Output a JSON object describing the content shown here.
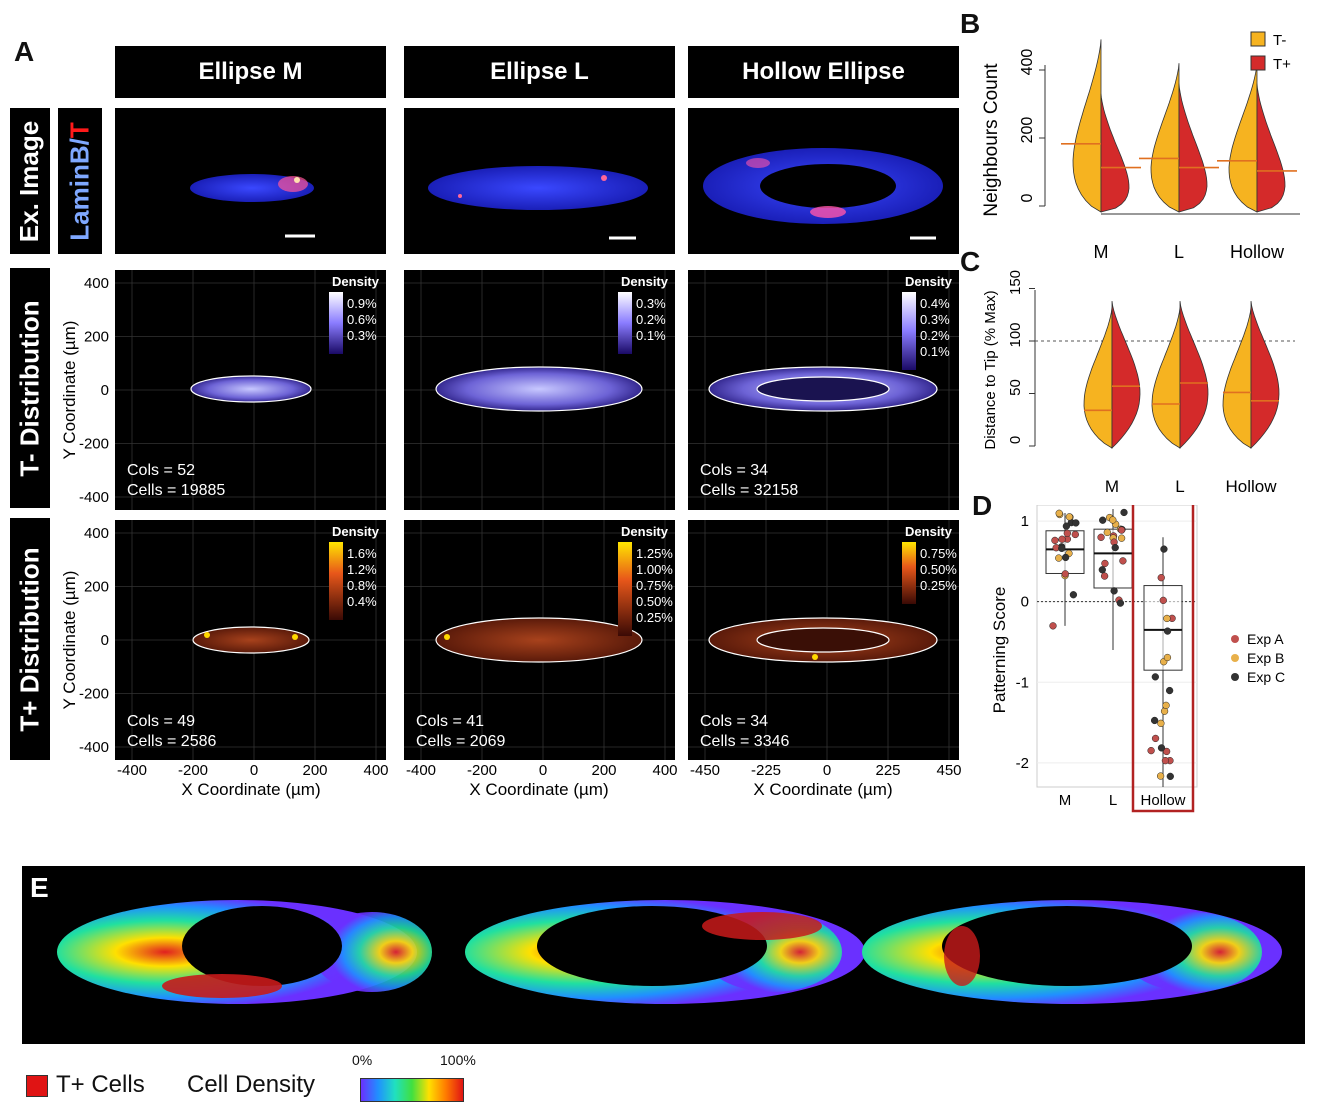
{
  "panel_letters": {
    "a": "A",
    "b": "B",
    "c": "C",
    "d": "D",
    "e": "E"
  },
  "columns": [
    "Ellipse M",
    "Ellipse L",
    "Hollow Ellipse"
  ],
  "rows": {
    "image": "Ex. Image",
    "stain_a": "LaminB/",
    "stain_b": "T",
    "tminus": "T- Distribution",
    "tplus": "T+ Distribution"
  },
  "colors": {
    "laminb": "#7fa8ff",
    "t": "#ff1a1a",
    "tminus": "#f6b320",
    "tplus": "#d42a2a",
    "exp_a": "#c0504d",
    "exp_b": "#e8b04a",
    "exp_c": "#333333",
    "hollow_box": "#b22222"
  },
  "axes": {
    "y_label": "Y Coordinate (µm)",
    "x_label": "X Coordinate (µm)",
    "y_ticks": [
      "400",
      "200",
      "0",
      "-200",
      "-400"
    ],
    "x_ticks": [
      [
        "-400",
        "-200",
        "0",
        "200",
        "400"
      ],
      [
        "-400",
        "-200",
        "0",
        "200",
        "400"
      ],
      [
        "-450",
        "-225",
        "0",
        "225",
        "450"
      ]
    ]
  },
  "density_legends": {
    "title": "Density",
    "tminus": [
      [
        "0.9%",
        "0.6%",
        "0.3%"
      ],
      [
        "0.3%",
        "0.2%",
        "0.1%"
      ],
      [
        "0.4%",
        "0.3%",
        "0.2%",
        "0.1%"
      ]
    ],
    "tplus": [
      [
        "1.6%",
        "1.2%",
        "0.8%",
        "0.4%"
      ],
      [
        "1.25%",
        "1.00%",
        "0.75%",
        "0.50%",
        "0.25%"
      ],
      [
        "0.75%",
        "0.50%",
        "0.25%"
      ]
    ]
  },
  "annotations": {
    "tminus": [
      {
        "cols": "Cols = 52",
        "cells": "Cells = 19885"
      },
      null,
      {
        "cols": "Cols = 34",
        "cells": "Cells = 32158"
      }
    ],
    "tplus": [
      {
        "cols": "Cols = 49",
        "cells": "Cells = 2586"
      },
      {
        "cols": "Cols = 41",
        "cells": "Cells = 2069"
      },
      {
        "cols": "Cols = 34",
        "cells": "Cells = 3346"
      }
    ]
  },
  "chart_data": [
    {
      "id": "B",
      "type": "violin",
      "ylabel": "Neighbours Count",
      "categories": [
        "M",
        "L",
        "Hollow"
      ],
      "yticks": [
        "0",
        "200",
        "400"
      ],
      "ylim": [
        0,
        500
      ],
      "series": [
        {
          "name": "T-",
          "medians": [
            183,
            140,
            133
          ]
        },
        {
          "name": "T+",
          "medians": [
            113,
            113,
            103
          ]
        }
      ],
      "legend": "top-right"
    },
    {
      "id": "C",
      "type": "violin",
      "ylabel": "Distance to Tip (% Max)",
      "categories": [
        "M",
        "L",
        "Hollow"
      ],
      "yticks": [
        "0",
        "50",
        "100",
        "150"
      ],
      "ylim": [
        0,
        160
      ],
      "reference_line": 100,
      "series": [
        {
          "name": "T-",
          "medians": [
            34,
            40,
            51
          ]
        },
        {
          "name": "T+",
          "medians": [
            57,
            60,
            43
          ]
        }
      ]
    },
    {
      "id": "D",
      "type": "box",
      "ylabel": "Patterning Score",
      "categories": [
        "M",
        "L",
        "Hollow"
      ],
      "yticks": [
        "1",
        "0",
        "-1",
        "-2"
      ],
      "ylim": [
        -2.3,
        1.2
      ],
      "boxes": [
        {
          "q1": 0.35,
          "median": 0.65,
          "q3": 0.88,
          "lo": -0.3,
          "hi": 1.1
        },
        {
          "q1": 0.17,
          "median": 0.6,
          "q3": 0.9,
          "lo": -0.6,
          "hi": 1.15
        },
        {
          "q1": -0.85,
          "median": -0.35,
          "q3": 0.2,
          "lo": -2.3,
          "hi": 0.8
        }
      ],
      "legend": [
        "Exp A",
        "Exp B",
        "Exp C"
      ],
      "highlight": "Hollow"
    }
  ],
  "bottom_legend": {
    "tplus_cells": "T+ Cells",
    "cell_density": "Cell Density",
    "min": "0%",
    "max": "100%"
  }
}
